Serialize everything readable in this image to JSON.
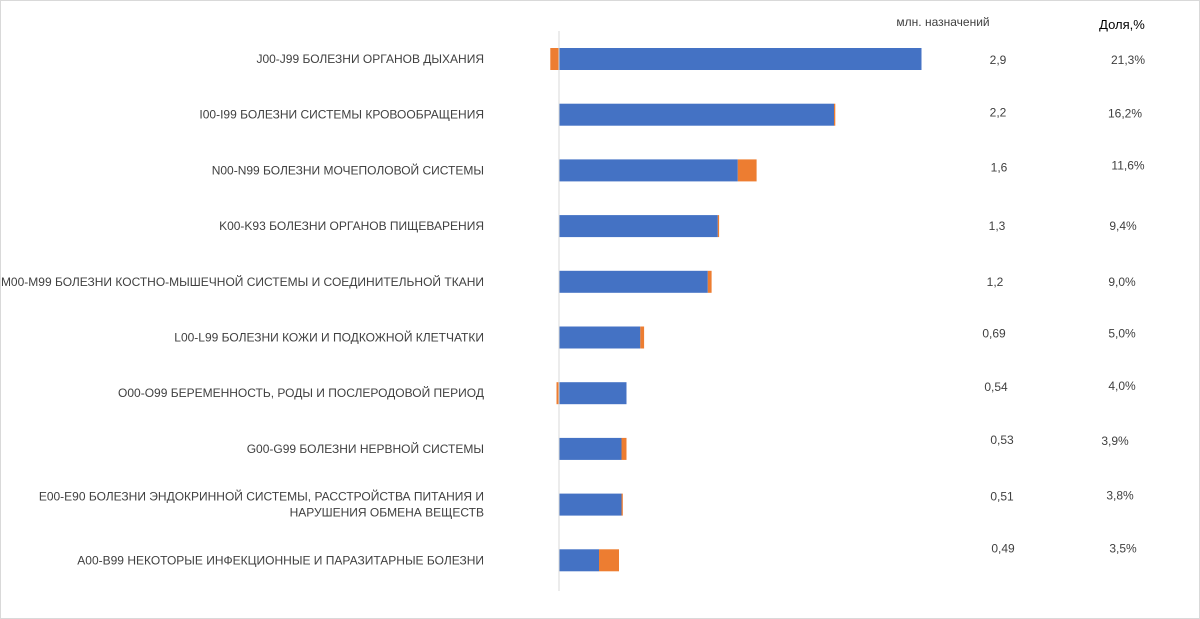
{
  "chart_data": {
    "type": "bar",
    "orientation": "horizontal",
    "stacked": true,
    "column_headers": {
      "millions_header": "млн. назначений",
      "share_header": "Доля,%"
    },
    "categories": [
      "J00-J99 БОЛЕЗНИ ОРГАНОВ ДЫХАНИЯ",
      "I00-I99 БОЛЕЗНИ СИСТЕМЫ КРОВООБРАЩЕНИЯ",
      "N00-N99 БОЛЕЗНИ МОЧЕПОЛОВОЙ СИСТЕМЫ",
      "K00-K93 БОЛЕЗНИ ОРГАНОВ ПИЩЕВАРЕНИЯ",
      "M00-M99 БОЛЕЗНИ КОСТНО-МЫШЕЧНОЙ СИСТЕМЫ И СОЕДИНИТЕЛЬНОЙ ТКАНИ",
      "L00-L99 БОЛЕЗНИ КОЖИ И ПОДКОЖНОЙ КЛЕТЧАТКИ",
      "O00-O99 БЕРЕМЕННОСТЬ, РОДЫ И ПОСЛЕРОДОВОЙ ПЕРИОД",
      "G00-G99 БОЛЕЗНИ НЕРВНОЙ СИСТЕМЫ",
      "E00-E90 БОЛЕЗНИ ЭНДОКРИННОЙ СИСТЕМЫ, РАССТРОЙСТВА ПИТАНИЯ И НАРУШЕНИЯ ОБМЕНА ВЕЩЕСТВ",
      "A00-B99 НЕКОТОРЫЕ ИНФЕКЦИОННЫЕ И ПАРАЗИТАРНЫЕ БОЛЕЗНИ"
    ],
    "category_lines": [
      [
        "J00-J99 БОЛЕЗНИ ОРГАНОВ ДЫХАНИЯ"
      ],
      [
        "I00-I99 БОЛЕЗНИ СИСТЕМЫ КРОВООБРАЩЕНИЯ"
      ],
      [
        "N00-N99 БОЛЕЗНИ МОЧЕПОЛОВОЙ СИСТЕМЫ"
      ],
      [
        "K00-K93 БОЛЕЗНИ ОРГАНОВ ПИЩЕВАРЕНИЯ"
      ],
      [
        "M00-M99 БОЛЕЗНИ КОСТНО-МЫШЕЧНОЙ СИСТЕМЫ И СОЕДИНИТЕЛЬНОЙ ТКАНИ"
      ],
      [
        "L00-L99 БОЛЕЗНИ КОЖИ И ПОДКОЖНОЙ КЛЕТЧАТКИ"
      ],
      [
        "O00-O99 БЕРЕМЕННОСТЬ, РОДЫ И ПОСЛЕРОДОВОЙ ПЕРИОД"
      ],
      [
        "G00-G99 БОЛЕЗНИ НЕРВНОЙ СИСТЕМЫ"
      ],
      [
        "E00-E90 БОЛЕЗНИ ЭНДОКРИННОЙ СИСТЕМЫ, РАССТРОЙСТВА ПИТАНИЯ И",
        "НАРУШЕНИЯ ОБМЕНА ВЕЩЕСТВ"
      ],
      [
        "A00-B99 НЕКОТОРЫЕ ИНФЕКЦИОННЫЕ И ПАРАЗИТАРНЫЕ БОЛЕЗНИ"
      ]
    ],
    "series": [
      {
        "color": "#4472c4",
        "values": [
          2.9,
          2.2,
          1.43,
          1.27,
          1.19,
          0.65,
          0.54,
          0.5,
          0.5,
          0.32
        ]
      },
      {
        "color": "#ed7d31",
        "values": [
          -0.07,
          0.01,
          0.15,
          0.01,
          0.03,
          0.03,
          -0.02,
          0.04,
          0.01,
          0.16
        ]
      }
    ],
    "value_labels": [
      "2,9",
      "2,2",
      "1,6",
      "1,3",
      "1,2",
      "0,69",
      "0,54",
      "0,53",
      "0,51",
      "0,49"
    ],
    "share_labels": [
      "21,3%",
      "16,2%",
      "11,6%",
      "9,4%",
      "9,0%",
      "5,0%",
      "4,0%",
      "3,9%",
      "3,8%",
      "3,5%"
    ],
    "xlim": [
      -0.1,
      3.0
    ],
    "grid": false,
    "legend": "none"
  }
}
